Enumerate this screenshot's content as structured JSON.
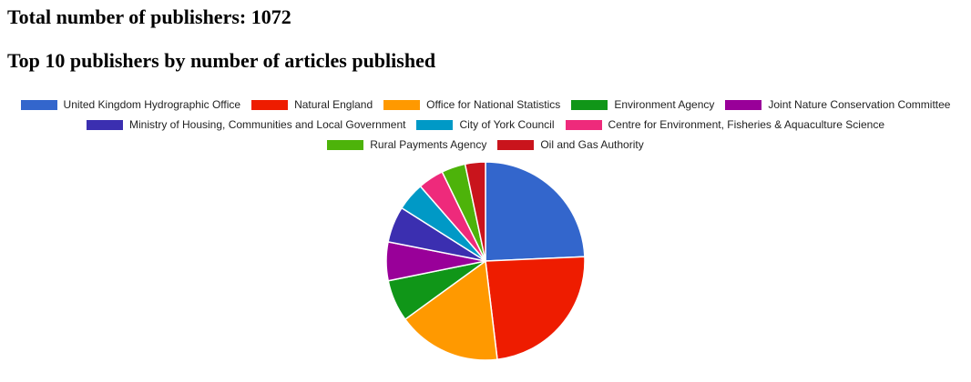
{
  "page": {
    "total_heading": "Total number of publishers: 1072",
    "top_heading": "Top 10 publishers by number of articles published"
  },
  "chart_data": {
    "type": "pie",
    "title": "",
    "legend_position": "top",
    "slices": [
      {
        "label": "United Kingdom Hydrographic Office",
        "value": 24.3,
        "color": "#3366cc"
      },
      {
        "label": "Natural England",
        "value": 23.8,
        "color": "#ee1c00"
      },
      {
        "label": "Office for National Statistics",
        "value": 16.9,
        "color": "#ff9900"
      },
      {
        "label": "Environment Agency",
        "value": 6.8,
        "color": "#109618"
      },
      {
        "label": "Joint Nature Conservation Committee",
        "value": 6.3,
        "color": "#990099"
      },
      {
        "label": "Ministry of Housing, Communities and Local Government",
        "value": 5.9,
        "color": "#3b2fb0"
      },
      {
        "label": "City of York Council",
        "value": 4.6,
        "color": "#0099c6"
      },
      {
        "label": "Centre for Environment, Fisheries & Aquaculture Science",
        "value": 4.2,
        "color": "#ee2a7b"
      },
      {
        "label": "Rural Payments Agency",
        "value": 3.9,
        "color": "#4db30a"
      },
      {
        "label": "Oil and Gas Authority",
        "value": 3.3,
        "color": "#c9141c"
      }
    ]
  }
}
